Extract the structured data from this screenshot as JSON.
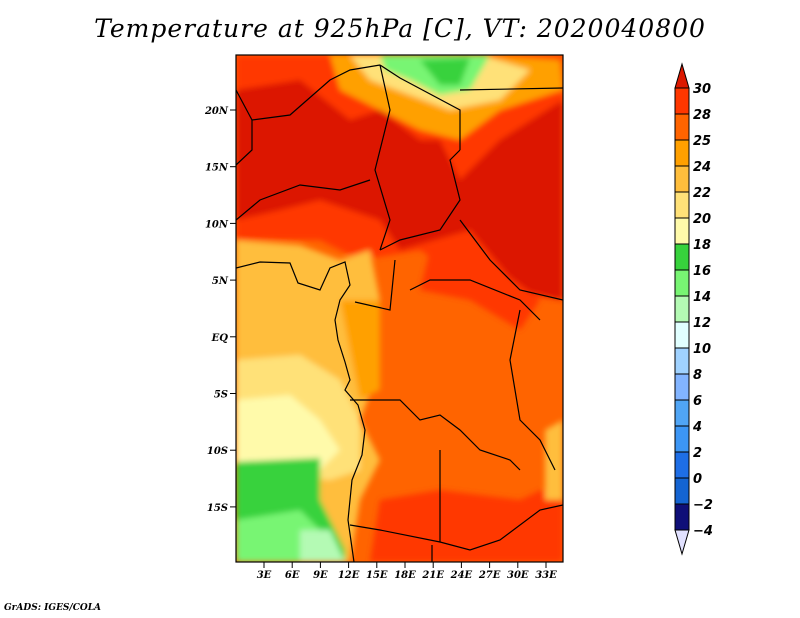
{
  "title": "Temperature at 925hPa [C], VT: 2020040800",
  "lat_labels": [
    "20N",
    "15N",
    "10N",
    "5N",
    "EQ",
    "5S",
    "10S",
    "15S"
  ],
  "lon_labels": [
    "3E",
    "6E",
    "9E",
    "12E",
    "15E",
    "18E",
    "21E",
    "24E",
    "27E",
    "30E",
    "33E"
  ],
  "colorbar": {
    "labels": [
      "30",
      "28",
      "25",
      "24",
      "22",
      "20",
      "18",
      "16",
      "14",
      "12",
      "10",
      "8",
      "6",
      "4",
      "2",
      "0",
      "-2",
      "-4"
    ],
    "colors": [
      "#dc1800",
      "#ff3700",
      "#ff6400",
      "#ffa000",
      "#ffbe3c",
      "#ffe178",
      "#fffaaa",
      "#37d23c",
      "#78f573",
      "#b4fab4",
      "#e1ffff",
      "#a0d2ff",
      "#82b4ff",
      "#50a5f5",
      "#3c96f5",
      "#1e6ee6",
      "#1464d2",
      "#0f0f78",
      "#e1e1ff"
    ]
  },
  "credit": "GrADS: IGES/COLA"
}
